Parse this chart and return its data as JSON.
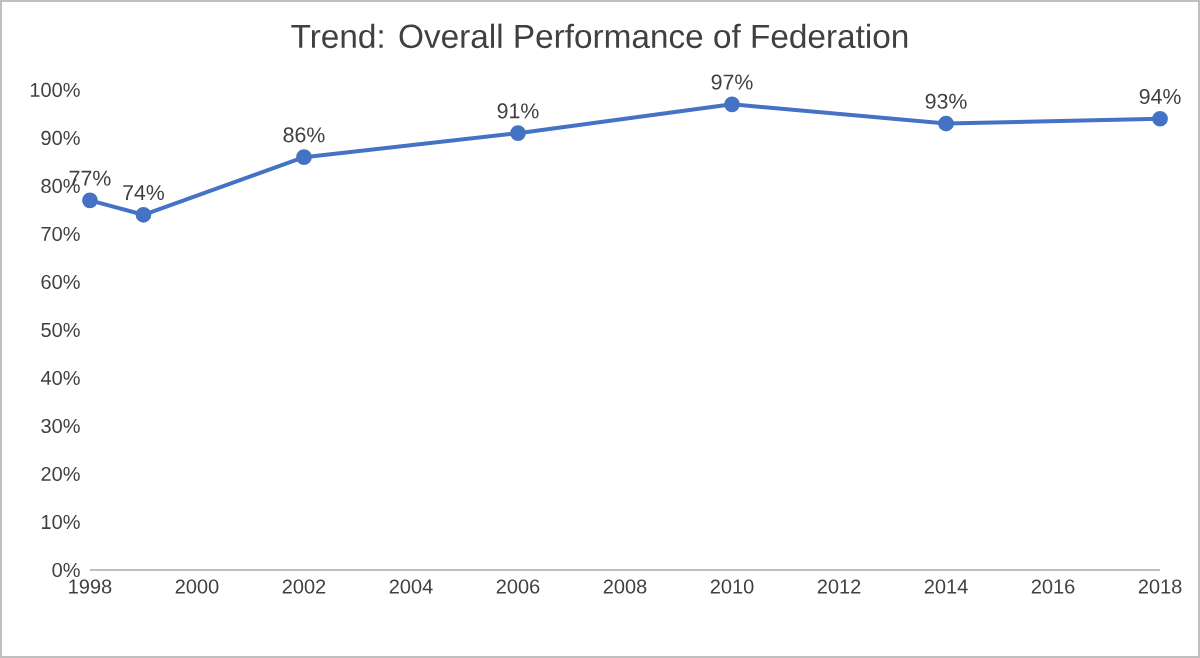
{
  "chart_data": {
    "type": "line",
    "title": "Trend: Overall Performance of Federation",
    "x": [
      1998,
      1999,
      2002,
      2006,
      2010,
      2014,
      2018
    ],
    "series": [
      {
        "color": "#4472c4",
        "values": [
          77,
          74,
          86,
          91,
          97,
          93,
          94
        ],
        "value_labels": [
          "77%",
          "74%",
          "86%",
          "91%",
          "97%",
          "93%",
          "94%"
        ]
      }
    ],
    "xlim": [
      1998,
      2018
    ],
    "xticks": [
      1998,
      2000,
      2002,
      2004,
      2006,
      2008,
      2010,
      2012,
      2014,
      2016,
      2018
    ],
    "ylim": [
      0,
      100
    ],
    "yticks": [
      {
        "value": 0,
        "label": "0%"
      },
      {
        "value": 10,
        "label": "10%"
      },
      {
        "value": 20,
        "label": "20%"
      },
      {
        "value": 30,
        "label": "30%"
      },
      {
        "value": 40,
        "label": "40%"
      },
      {
        "value": 50,
        "label": "50%"
      },
      {
        "value": 60,
        "label": "60%"
      },
      {
        "value": 70,
        "label": "70%"
      },
      {
        "value": 80,
        "label": "80%"
      },
      {
        "value": 90,
        "label": "90%"
      },
      {
        "value": 100,
        "label": "100%"
      }
    ],
    "marker": "circle",
    "line_style": "solid"
  }
}
